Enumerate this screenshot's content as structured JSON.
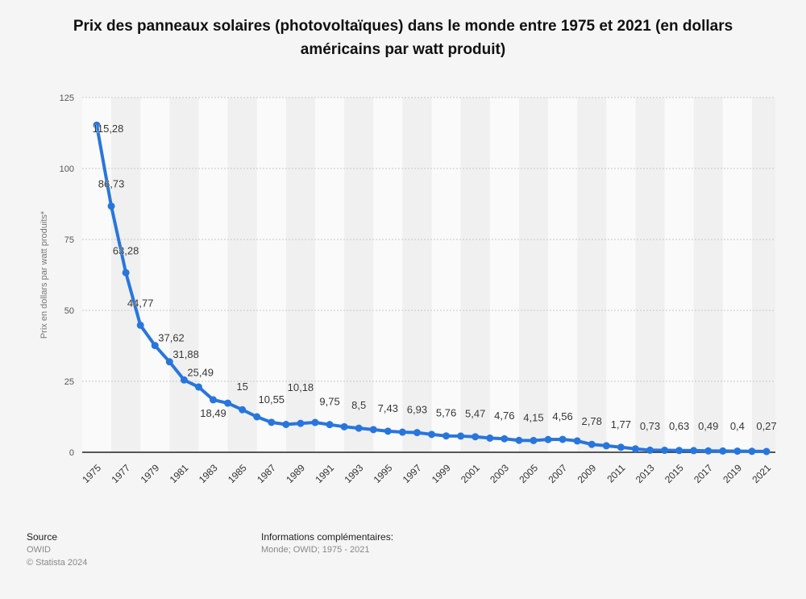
{
  "chart_data": {
    "type": "line",
    "title": "Prix des panneaux solaires (photovoltaïques) dans le monde entre 1975 et 2021 (en dollars américains par watt produit)",
    "xlabel": "",
    "ylabel": "Prix en dollars par watt produits*",
    "ylim": [
      0,
      125
    ],
    "yticks": [
      0,
      25,
      50,
      75,
      100,
      125
    ],
    "xticks": [
      1975,
      1977,
      1979,
      1981,
      1983,
      1985,
      1987,
      1989,
      1991,
      1993,
      1995,
      1997,
      1999,
      2001,
      2003,
      2005,
      2007,
      2009,
      2011,
      2013,
      2015,
      2017,
      2019,
      2021
    ],
    "grid": true,
    "legend": "none",
    "color": "#2876dd",
    "x": [
      1975,
      1976,
      1977,
      1978,
      1979,
      1980,
      1981,
      1982,
      1983,
      1984,
      1985,
      1986,
      1987,
      1988,
      1989,
      1990,
      1991,
      1992,
      1993,
      1994,
      1995,
      1996,
      1997,
      1998,
      1999,
      2000,
      2001,
      2002,
      2003,
      2004,
      2005,
      2006,
      2007,
      2008,
      2009,
      2010,
      2011,
      2012,
      2013,
      2014,
      2015,
      2016,
      2017,
      2018,
      2019,
      2020,
      2021
    ],
    "values": [
      115.28,
      86.73,
      63.28,
      44.77,
      37.62,
      31.88,
      25.49,
      23.0,
      18.49,
      17.3,
      15,
      12.5,
      10.55,
      9.8,
      10.18,
      10.5,
      9.75,
      9.0,
      8.5,
      8.0,
      7.43,
      7.1,
      6.93,
      6.3,
      5.76,
      5.7,
      5.47,
      5.0,
      4.76,
      4.2,
      4.15,
      4.5,
      4.56,
      4.0,
      2.78,
      2.3,
      1.77,
      1.2,
      0.73,
      0.7,
      0.63,
      0.6,
      0.49,
      0.45,
      0.4,
      0.35,
      0.27
    ],
    "data_labels": {
      "1975": "115,28",
      "1976": "86,73",
      "1977": "63,28",
      "1978": "44,77",
      "1979": "37,62",
      "1980": "31,88",
      "1981": "25,49",
      "1983": "18,49",
      "1985": "15",
      "1987": "10,55",
      "1989": "10,18",
      "1991": "9,75",
      "1993": "8,5",
      "1995": "7,43",
      "1997": "6,93",
      "1999": "5,76",
      "2001": "5,47",
      "2003": "4,76",
      "2005": "4,15",
      "2007": "4,56",
      "2009": "2,78",
      "2011": "1,77",
      "2013": "0,73",
      "2015": "0,63",
      "2017": "0,49",
      "2019": "0,4",
      "2021": "0,27"
    }
  },
  "footer": {
    "source_heading": "Source",
    "source": "OWID",
    "copyright": "© Statista 2024",
    "info_heading": "Informations complémentaires:",
    "info": "Monde; OWID; 1975 - 2021"
  }
}
